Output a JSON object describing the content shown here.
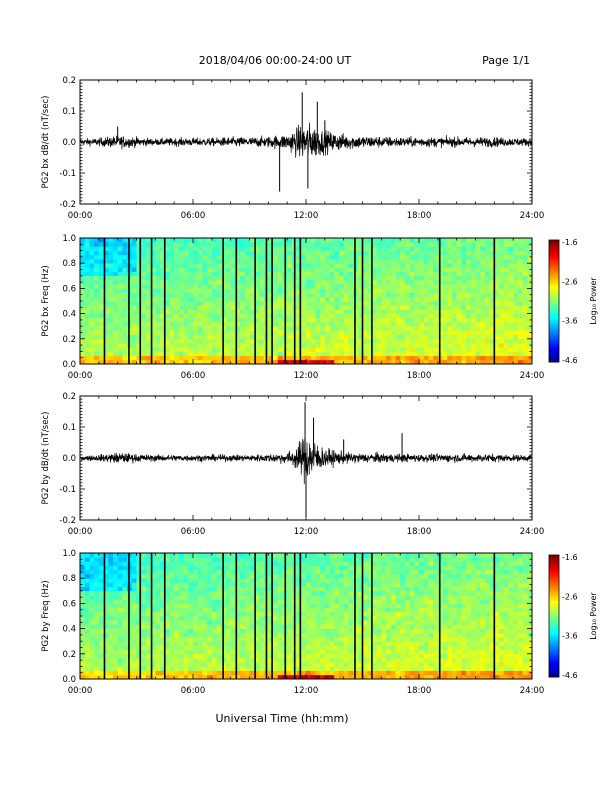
{
  "header": {
    "title": "2018/04/06  00:00-24:00 UT",
    "page": "Page 1/1"
  },
  "footer": {
    "xlabel": "Universal Time (hh:mm)"
  },
  "colorbar": {
    "label": "Log₁₀ Power",
    "ticks": [
      "-1.6",
      "-2.6",
      "-3.6",
      "-4.6"
    ],
    "values": [
      -1.6,
      -2.6,
      -3.6,
      -4.6
    ]
  },
  "chart_data": [
    {
      "type": "line",
      "ylabel": "PG2 bx dB/dt (nT/sec)",
      "xlim": [
        "00:00",
        "24:00"
      ],
      "xticks": [
        "00:00",
        "06:00",
        "12:00",
        "18:00",
        "24:00"
      ],
      "ylim": [
        -0.2,
        0.2
      ],
      "yticks": [
        "-0.2",
        "-0.1",
        "0.0",
        "0.1",
        "0.2"
      ],
      "ytick_values": [
        -0.2,
        -0.1,
        0.0,
        0.1,
        0.2
      ],
      "envelope": {
        "x_hours": [
          0,
          1,
          2,
          3,
          4,
          5,
          6,
          7,
          8,
          9,
          10,
          11,
          11.5,
          12,
          12.5,
          13,
          14,
          15,
          16,
          17,
          18,
          19,
          20,
          21,
          22,
          23,
          24
        ],
        "amplitude": [
          0.02,
          0.025,
          0.04,
          0.03,
          0.02,
          0.025,
          0.025,
          0.025,
          0.03,
          0.03,
          0.035,
          0.05,
          0.09,
          0.12,
          0.1,
          0.07,
          0.05,
          0.04,
          0.035,
          0.03,
          0.03,
          0.03,
          0.03,
          0.03,
          0.03,
          0.025,
          0.025
        ]
      },
      "spikes": [
        {
          "x_hours": 2.0,
          "value": 0.05
        },
        {
          "x_hours": 10.6,
          "value": -0.16
        },
        {
          "x_hours": 11.8,
          "value": 0.16
        },
        {
          "x_hours": 12.1,
          "value": -0.15
        },
        {
          "x_hours": 12.6,
          "value": 0.13
        },
        {
          "x_hours": 13.0,
          "value": 0.07
        }
      ]
    },
    {
      "type": "heatmap",
      "ylabel": "PG2 bx Freq (Hz)",
      "xlim": [
        "00:00",
        "24:00"
      ],
      "xticks": [
        "00:00",
        "06:00",
        "12:00",
        "18:00",
        "24:00"
      ],
      "ylim": [
        0.0,
        1.0
      ],
      "yticks": [
        "0.0",
        "0.2",
        "0.4",
        "0.6",
        "0.8",
        "1.0"
      ],
      "ytick_values": [
        0.0,
        0.2,
        0.4,
        0.6,
        0.8,
        1.0
      ],
      "zlim": [
        -4.6,
        -1.6
      ],
      "gap_hours": [
        1.3,
        2.6,
        3.2,
        3.8,
        4.5,
        7.6,
        8.3,
        9.3,
        9.9,
        10.2,
        10.9,
        11.4,
        11.7,
        14.6,
        15.0,
        15.5,
        19.1,
        22.0
      ]
    },
    {
      "type": "line",
      "ylabel": "PG2 by dB/dt (nT/sec)",
      "xlim": [
        "00:00",
        "24:00"
      ],
      "xticks": [
        "00:00",
        "06:00",
        "12:00",
        "18:00",
        "24:00"
      ],
      "ylim": [
        -0.2,
        0.2
      ],
      "yticks": [
        "-0.2",
        "-0.1",
        "0.0",
        "0.1",
        "0.2"
      ],
      "ytick_values": [
        -0.2,
        -0.1,
        0.0,
        0.1,
        0.2
      ],
      "envelope": {
        "x_hours": [
          0,
          1,
          2,
          3,
          4,
          5,
          6,
          7,
          8,
          9,
          10,
          11,
          11.5,
          12,
          12.5,
          13,
          14,
          15,
          16,
          17,
          18,
          19,
          20,
          21,
          22,
          23,
          24
        ],
        "amplitude": [
          0.015,
          0.02,
          0.035,
          0.025,
          0.02,
          0.02,
          0.02,
          0.02,
          0.02,
          0.02,
          0.025,
          0.035,
          0.07,
          0.16,
          0.1,
          0.06,
          0.035,
          0.03,
          0.03,
          0.025,
          0.025,
          0.025,
          0.025,
          0.025,
          0.025,
          0.02,
          0.02
        ]
      },
      "spikes": [
        {
          "x_hours": 11.95,
          "value": 0.18
        },
        {
          "x_hours": 12.0,
          "value": -0.19
        },
        {
          "x_hours": 12.4,
          "value": 0.13
        },
        {
          "x_hours": 14.0,
          "value": 0.06
        },
        {
          "x_hours": 17.1,
          "value": 0.08
        }
      ]
    },
    {
      "type": "heatmap",
      "ylabel": "PG2 by Freq (Hz)",
      "xlim": [
        "00:00",
        "24:00"
      ],
      "xticks": [
        "00:00",
        "06:00",
        "12:00",
        "18:00",
        "24:00"
      ],
      "ylim": [
        0.0,
        1.0
      ],
      "yticks": [
        "0.0",
        "0.2",
        "0.4",
        "0.6",
        "0.8",
        "1.0"
      ],
      "ytick_values": [
        0.0,
        0.2,
        0.4,
        0.6,
        0.8,
        1.0
      ],
      "zlim": [
        -4.6,
        -1.6
      ],
      "gap_hours": [
        1.3,
        2.6,
        3.2,
        3.8,
        4.5,
        7.6,
        8.3,
        9.3,
        9.9,
        10.2,
        10.9,
        11.4,
        11.7,
        14.6,
        15.0,
        15.5,
        19.1,
        22.0
      ]
    }
  ]
}
